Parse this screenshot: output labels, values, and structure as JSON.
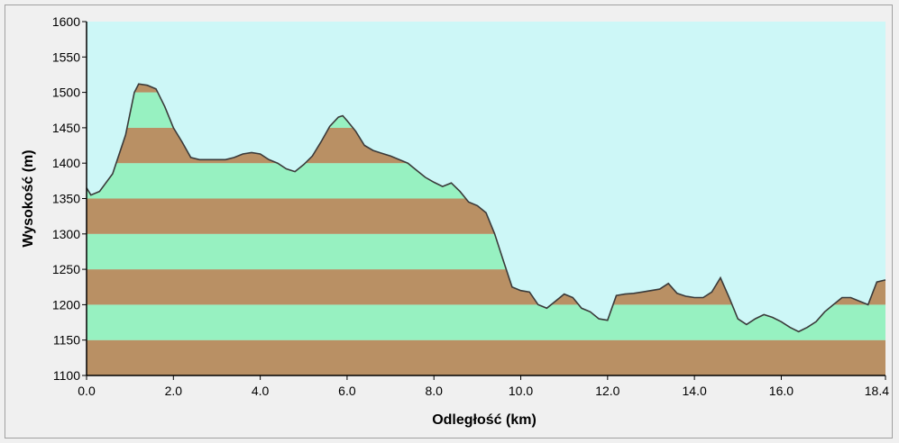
{
  "chart_data": {
    "type": "area",
    "title": "",
    "xlabel": "Odległość  (km)",
    "ylabel": "Wysokość (m)",
    "xlim": [
      0,
      18.4
    ],
    "ylim": [
      1100,
      1600
    ],
    "x_ticks": [
      0.0,
      2.0,
      4.0,
      6.0,
      8.0,
      10.0,
      12.0,
      14.0,
      16.0,
      18.4
    ],
    "x_tick_labels": [
      "0.0",
      "2.0",
      "4.0",
      "6.0",
      "8.0",
      "10.0",
      "12.0",
      "14.0",
      "16.0",
      "18.4"
    ],
    "y_ticks": [
      1100,
      1150,
      1200,
      1250,
      1300,
      1350,
      1400,
      1450,
      1500,
      1550,
      1600
    ],
    "y_tick_labels": [
      "1100",
      "1150",
      "1200",
      "1250",
      "1300",
      "1350",
      "1400",
      "1450",
      "1500",
      "1550",
      "1600"
    ],
    "grid": false,
    "legend": "none",
    "colors": {
      "sky": "#cdf7f7",
      "band_brown": "#b99064",
      "band_green": "#97f1c1",
      "outline": "#3a3a3a"
    },
    "band_height": 50,
    "series": [
      {
        "x": [
          0.0,
          0.1,
          0.3,
          0.6,
          0.9,
          1.1,
          1.2,
          1.4,
          1.6,
          1.8,
          2.0,
          2.2,
          2.4,
          2.6,
          2.8,
          3.0,
          3.2,
          3.4,
          3.6,
          3.8,
          4.0,
          4.2,
          4.4,
          4.6,
          4.8,
          5.0,
          5.2,
          5.4,
          5.6,
          5.8,
          5.9,
          6.0,
          6.2,
          6.4,
          6.6,
          6.8,
          7.0,
          7.2,
          7.4,
          7.6,
          7.8,
          8.0,
          8.2,
          8.4,
          8.6,
          8.8,
          9.0,
          9.2,
          9.4,
          9.6,
          9.8,
          10.0,
          10.2,
          10.4,
          10.6,
          10.8,
          11.0,
          11.2,
          11.4,
          11.6,
          11.8,
          12.0,
          12.2,
          12.4,
          12.6,
          12.8,
          13.0,
          13.2,
          13.4,
          13.6,
          13.8,
          14.0,
          14.2,
          14.4,
          14.6,
          14.8,
          15.0,
          15.2,
          15.4,
          15.6,
          15.8,
          16.0,
          16.2,
          16.4,
          16.6,
          16.8,
          17.0,
          17.2,
          17.4,
          17.6,
          17.8,
          18.0,
          18.2,
          18.4
        ],
        "y": [
          1365,
          1355,
          1360,
          1385,
          1440,
          1500,
          1512,
          1510,
          1505,
          1480,
          1450,
          1430,
          1408,
          1405,
          1405,
          1405,
          1405,
          1408,
          1413,
          1415,
          1413,
          1405,
          1400,
          1392,
          1388,
          1398,
          1410,
          1430,
          1452,
          1465,
          1467,
          1460,
          1445,
          1425,
          1418,
          1414,
          1410,
          1405,
          1400,
          1390,
          1380,
          1373,
          1367,
          1372,
          1360,
          1345,
          1340,
          1330,
          1300,
          1262,
          1225,
          1220,
          1218,
          1200,
          1195,
          1205,
          1215,
          1210,
          1195,
          1190,
          1180,
          1178,
          1213,
          1215,
          1216,
          1218,
          1220,
          1222,
          1230,
          1216,
          1212,
          1210,
          1210,
          1218,
          1238,
          1210,
          1180,
          1172,
          1180,
          1186,
          1182,
          1176,
          1168,
          1162,
          1168,
          1176,
          1190,
          1200,
          1210,
          1210,
          1205,
          1200,
          1232,
          1235
        ]
      }
    ]
  }
}
